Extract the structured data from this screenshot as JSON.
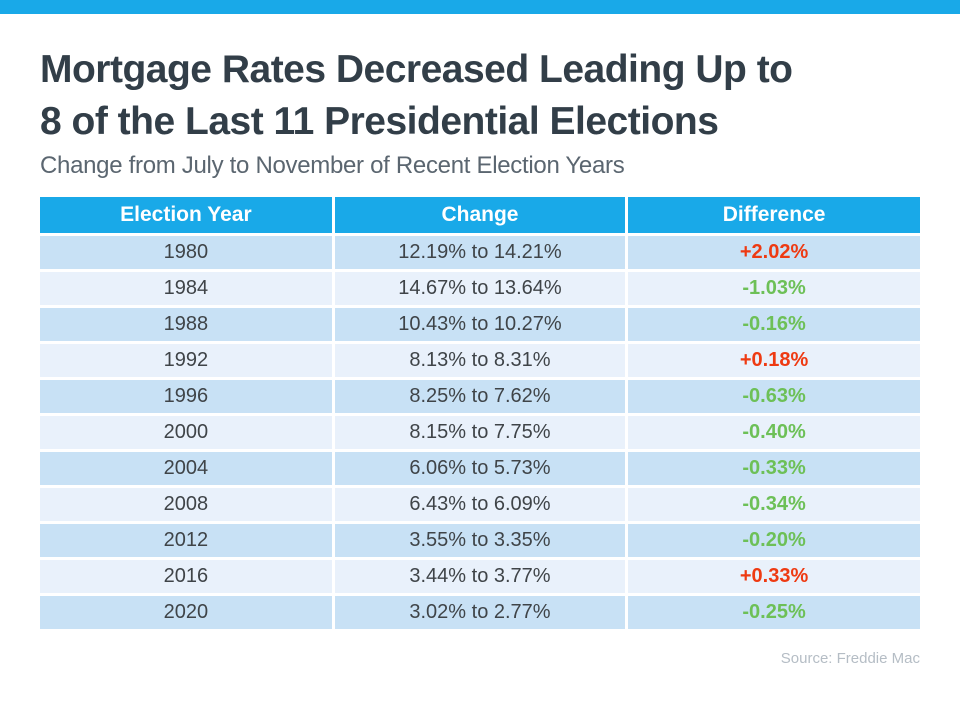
{
  "header": {
    "title_line1": "Mortgage Rates Decreased Leading Up to",
    "title_line2": "8 of the Last 11 Presidential Elections",
    "subtitle": "Change from July to November of Recent Election Years"
  },
  "footer": {
    "source": "Source: Freddie Mac"
  },
  "colors": {
    "accent_blue": "#19A9E8",
    "row_dark": "#C8E1F5",
    "row_light": "#E9F1FB",
    "diff_up_red": "#EE3A12",
    "diff_down_green": "#6DC057",
    "title_text": "#323E48",
    "subtitle_text": "#5B6670",
    "cell_text": "#3F4448",
    "source_text": "#B5BDC5"
  },
  "chart_data": {
    "type": "table",
    "title": "Mortgage Rates Decreased Leading Up to 8 of the Last 11 Presidential Elections",
    "subtitle": "Change from July to November of Recent Election Years",
    "columns": [
      "Election Year",
      "Change",
      "Difference"
    ],
    "rows": [
      {
        "year": "1980",
        "change": "12.19% to 14.21%",
        "difference": "+2.02%",
        "direction": "up"
      },
      {
        "year": "1984",
        "change": "14.67% to 13.64%",
        "difference": "-1.03%",
        "direction": "down"
      },
      {
        "year": "1988",
        "change": "10.43% to 10.27%",
        "difference": "-0.16%",
        "direction": "down"
      },
      {
        "year": "1992",
        "change": "8.13% to 8.31%",
        "difference": "+0.18%",
        "direction": "up"
      },
      {
        "year": "1996",
        "change": "8.25% to 7.62%",
        "difference": "-0.63%",
        "direction": "down"
      },
      {
        "year": "2000",
        "change": "8.15% to 7.75%",
        "difference": "-0.40%",
        "direction": "down"
      },
      {
        "year": "2004",
        "change": "6.06% to 5.73%",
        "difference": "-0.33%",
        "direction": "down"
      },
      {
        "year": "2008",
        "change": "6.43% to 6.09%",
        "difference": "-0.34%",
        "direction": "down"
      },
      {
        "year": "2012",
        "change": "3.55% to 3.35%",
        "difference": "-0.20%",
        "direction": "down"
      },
      {
        "year": "2016",
        "change": "3.44% to 3.77%",
        "difference": "+0.33%",
        "direction": "up"
      },
      {
        "year": "2020",
        "change": "3.02% to 2.77%",
        "difference": "-0.25%",
        "direction": "down"
      }
    ],
    "source": "Source: Freddie Mac"
  }
}
